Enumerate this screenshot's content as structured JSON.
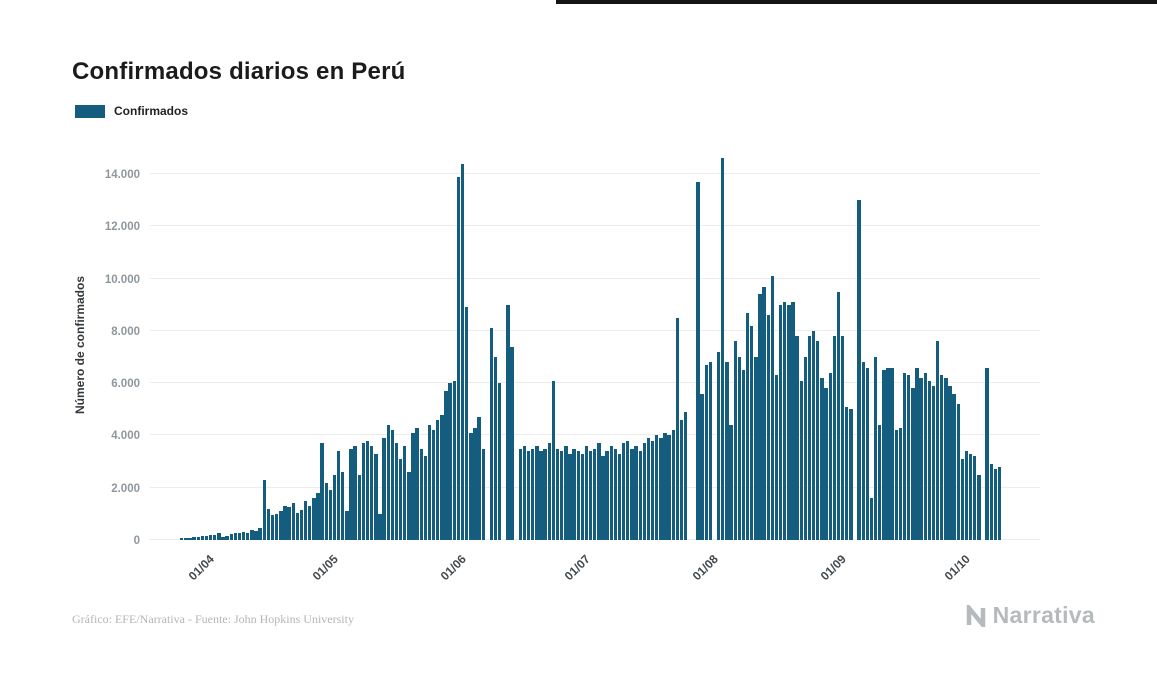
{
  "header": {
    "title": "Confirmados diarios en Perú"
  },
  "legend": {
    "label": "Confirmados",
    "color": "#145d7f"
  },
  "chart_data": {
    "type": "bar",
    "title": "Confirmados diarios en Perú",
    "xlabel": "",
    "ylabel": "Número de confirmados",
    "ylim": [
      0,
      15000
    ],
    "grid": true,
    "legend_position": "top-left",
    "series_name": "Confirmados",
    "bar_color": "#145d7f",
    "start_date": "26/03/2020",
    "frequency": "daily",
    "y_ticks": [
      {
        "value": 0,
        "label": "0"
      },
      {
        "value": 2000,
        "label": "2.000"
      },
      {
        "value": 4000,
        "label": "4.000"
      },
      {
        "value": 6000,
        "label": "6.000"
      },
      {
        "value": 8000,
        "label": "8.000"
      },
      {
        "value": 10000,
        "label": "10.000"
      },
      {
        "value": 12000,
        "label": "12.000"
      },
      {
        "value": 14000,
        "label": "14.000"
      }
    ],
    "x_ticks": [
      {
        "label": "01/04",
        "index": 6
      },
      {
        "label": "01/05",
        "index": 36
      },
      {
        "label": "01/06",
        "index": 67
      },
      {
        "label": "01/07",
        "index": 97
      },
      {
        "label": "01/08",
        "index": 128
      },
      {
        "label": "01/09",
        "index": 159
      },
      {
        "label": "01/10",
        "index": 189
      }
    ],
    "values": [
      60,
      80,
      70,
      100,
      120,
      140,
      150,
      180,
      210,
      250,
      120,
      170,
      230,
      260,
      280,
      300,
      250,
      400,
      350,
      450,
      2300,
      1200,
      950,
      1000,
      1100,
      1300,
      1250,
      1400,
      1050,
      1150,
      1500,
      1300,
      1600,
      1800,
      3700,
      2200,
      1900,
      2500,
      3400,
      2600,
      1100,
      3500,
      3600,
      2500,
      3700,
      3800,
      3600,
      3300,
      1000,
      3900,
      4400,
      4200,
      3700,
      3100,
      3600,
      2600,
      4100,
      4300,
      3500,
      3200,
      4400,
      4200,
      4600,
      4800,
      5700,
      6000,
      6100,
      13900,
      14400,
      8900,
      4100,
      4300,
      4700,
      3500,
      0,
      8100,
      7000,
      6000,
      0,
      9000,
      7400,
      0,
      3500,
      3600,
      3400,
      3500,
      3600,
      3400,
      3500,
      3700,
      6100,
      3500,
      3400,
      3600,
      3300,
      3500,
      3400,
      3300,
      3600,
      3400,
      3500,
      3700,
      3200,
      3400,
      3600,
      3500,
      3300,
      3700,
      3800,
      3500,
      3600,
      3400,
      3700,
      3900,
      3800,
      4000,
      3900,
      4100,
      4000,
      4200,
      8500,
      4600,
      4900,
      0,
      0,
      13700,
      5600,
      6700,
      6800,
      0,
      7200,
      14600,
      6800,
      4400,
      7600,
      7000,
      6500,
      8700,
      8200,
      7000,
      9400,
      9700,
      8600,
      10100,
      6300,
      9000,
      9100,
      9000,
      9100,
      7800,
      6100,
      7000,
      7800,
      8000,
      7600,
      6200,
      5800,
      6400,
      7800,
      9500,
      7800,
      5100,
      5000,
      0,
      13000,
      6800,
      6600,
      1600,
      7000,
      4400,
      6500,
      6600,
      6600,
      4200,
      4300,
      6400,
      6300,
      5800,
      6600,
      6200,
      6400,
      6100,
      5900,
      7600,
      6300,
      6200,
      5900,
      5600,
      5200,
      3100,
      3400,
      3300,
      3200,
      2500,
      0,
      6600,
      2900,
      2700,
      2800
    ]
  },
  "footer": {
    "credit": "Gráfico: EFE/Narrativa - Fuente: John Hopkins University"
  },
  "branding": {
    "logo_text": "Narrativa"
  }
}
